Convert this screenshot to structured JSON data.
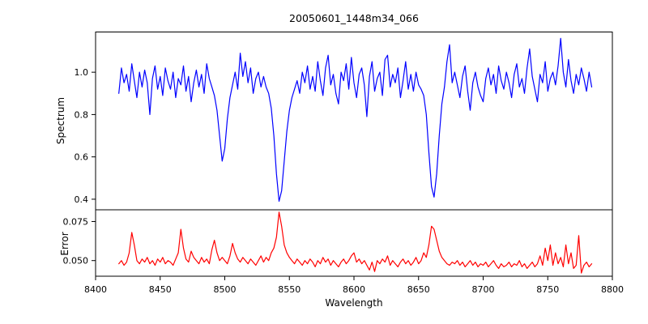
{
  "figure": {
    "title": "20050601_1448m34_066",
    "background": "#ffffff",
    "spine_color": "#000000"
  },
  "chart_data": [
    {
      "type": "line",
      "name": "spectrum",
      "ylabel": "Spectrum",
      "color": "#0000ff",
      "xlim": [
        8400,
        8800
      ],
      "ylim": [
        0.35,
        1.19
      ],
      "yticks": [
        0.4,
        0.6,
        0.8,
        1.0
      ],
      "ytick_labels": [
        "0.4",
        "0.6",
        "0.8",
        "1.0"
      ],
      "grid": false,
      "legend": null,
      "x_start": 8418,
      "x_step": 2,
      "values": [
        0.9,
        1.02,
        0.95,
        0.99,
        0.91,
        1.04,
        0.96,
        0.88,
        1.0,
        0.93,
        1.01,
        0.95,
        0.8,
        0.97,
        1.03,
        0.92,
        0.98,
        0.89,
        1.02,
        0.96,
        0.92,
        1.0,
        0.88,
        0.97,
        0.94,
        1.03,
        0.91,
        0.98,
        0.86,
        0.95,
        1.01,
        0.93,
        0.99,
        0.9,
        1.04,
        0.97,
        0.93,
        0.89,
        0.82,
        0.7,
        0.58,
        0.64,
        0.78,
        0.88,
        0.94,
        1.0,
        0.92,
        1.09,
        0.98,
        1.05,
        0.95,
        1.02,
        0.9,
        0.97,
        1.0,
        0.93,
        0.98,
        0.93,
        0.9,
        0.83,
        0.7,
        0.52,
        0.39,
        0.44,
        0.58,
        0.72,
        0.82,
        0.88,
        0.92,
        0.96,
        0.9,
        1.0,
        0.95,
        1.03,
        0.92,
        0.98,
        0.91,
        1.05,
        0.96,
        0.89,
        1.02,
        1.08,
        0.94,
        0.99,
        0.9,
        0.85,
        1.0,
        0.96,
        1.04,
        0.92,
        1.07,
        0.95,
        0.88,
        0.99,
        1.02,
        0.94,
        0.79,
        0.98,
        1.05,
        0.91,
        0.97,
        1.0,
        0.89,
        1.06,
        1.08,
        0.93,
        0.99,
        0.95,
        1.02,
        0.88,
        0.96,
        1.05,
        0.92,
        0.99,
        0.91,
        1.0,
        0.94,
        0.92,
        0.89,
        0.8,
        0.62,
        0.46,
        0.41,
        0.52,
        0.7,
        0.85,
        0.93,
        1.05,
        1.13,
        0.95,
        1.0,
        0.94,
        0.88,
        0.98,
        1.03,
        0.91,
        0.82,
        0.95,
        1.0,
        0.93,
        0.89,
        0.86,
        0.97,
        1.02,
        0.94,
        0.99,
        0.9,
        1.03,
        0.96,
        0.92,
        1.0,
        0.95,
        0.88,
        0.99,
        1.04,
        0.93,
        0.97,
        0.9,
        1.02,
        1.11,
        0.98,
        0.92,
        0.86,
        0.99,
        0.95,
        1.05,
        0.91,
        0.97,
        1.0,
        0.94,
        1.03,
        1.16,
        1.0,
        0.93,
        1.06,
        0.96,
        0.9,
        0.99,
        0.94,
        1.02,
        0.97,
        0.91,
        1.0,
        0.93
      ]
    },
    {
      "type": "line",
      "name": "error",
      "ylabel": "Error",
      "xlabel": "Wavelength",
      "color": "#ff0000",
      "xlim": [
        8400,
        8800
      ],
      "ylim": [
        0.04,
        0.0825
      ],
      "yticks": [
        0.05,
        0.075
      ],
      "ytick_labels": [
        "0.050",
        "0.075"
      ],
      "xticks": [
        8400,
        8450,
        8500,
        8550,
        8600,
        8650,
        8700,
        8750,
        8800
      ],
      "xtick_labels": [
        "8400",
        "8450",
        "8500",
        "8550",
        "8600",
        "8650",
        "8700",
        "8750",
        "8800"
      ],
      "grid": false,
      "legend": null,
      "x_start": 8418,
      "x_step": 2,
      "values": [
        0.048,
        0.05,
        0.047,
        0.049,
        0.055,
        0.068,
        0.06,
        0.05,
        0.048,
        0.051,
        0.049,
        0.052,
        0.048,
        0.05,
        0.047,
        0.051,
        0.049,
        0.052,
        0.048,
        0.05,
        0.049,
        0.047,
        0.051,
        0.055,
        0.07,
        0.058,
        0.051,
        0.049,
        0.056,
        0.052,
        0.05,
        0.048,
        0.052,
        0.049,
        0.051,
        0.048,
        0.057,
        0.063,
        0.055,
        0.05,
        0.052,
        0.05,
        0.048,
        0.053,
        0.061,
        0.055,
        0.051,
        0.049,
        0.052,
        0.05,
        0.048,
        0.051,
        0.049,
        0.047,
        0.05,
        0.053,
        0.049,
        0.052,
        0.05,
        0.055,
        0.058,
        0.065,
        0.081,
        0.072,
        0.06,
        0.055,
        0.052,
        0.05,
        0.048,
        0.051,
        0.049,
        0.047,
        0.05,
        0.048,
        0.051,
        0.049,
        0.046,
        0.05,
        0.048,
        0.052,
        0.049,
        0.051,
        0.047,
        0.05,
        0.048,
        0.046,
        0.049,
        0.051,
        0.048,
        0.05,
        0.053,
        0.055,
        0.049,
        0.051,
        0.048,
        0.05,
        0.047,
        0.044,
        0.049,
        0.043,
        0.05,
        0.048,
        0.051,
        0.049,
        0.053,
        0.047,
        0.05,
        0.048,
        0.046,
        0.049,
        0.051,
        0.048,
        0.05,
        0.047,
        0.049,
        0.052,
        0.048,
        0.05,
        0.055,
        0.052,
        0.06,
        0.072,
        0.07,
        0.063,
        0.056,
        0.052,
        0.05,
        0.048,
        0.047,
        0.049,
        0.048,
        0.05,
        0.047,
        0.049,
        0.046,
        0.048,
        0.05,
        0.047,
        0.049,
        0.046,
        0.048,
        0.047,
        0.049,
        0.046,
        0.048,
        0.05,
        0.047,
        0.045,
        0.048,
        0.046,
        0.047,
        0.049,
        0.046,
        0.048,
        0.047,
        0.05,
        0.046,
        0.048,
        0.045,
        0.047,
        0.049,
        0.046,
        0.048,
        0.053,
        0.047,
        0.058,
        0.05,
        0.06,
        0.047,
        0.055,
        0.048,
        0.052,
        0.046,
        0.06,
        0.048,
        0.055,
        0.045,
        0.047,
        0.066,
        0.042,
        0.047,
        0.049,
        0.046,
        0.048
      ]
    }
  ]
}
